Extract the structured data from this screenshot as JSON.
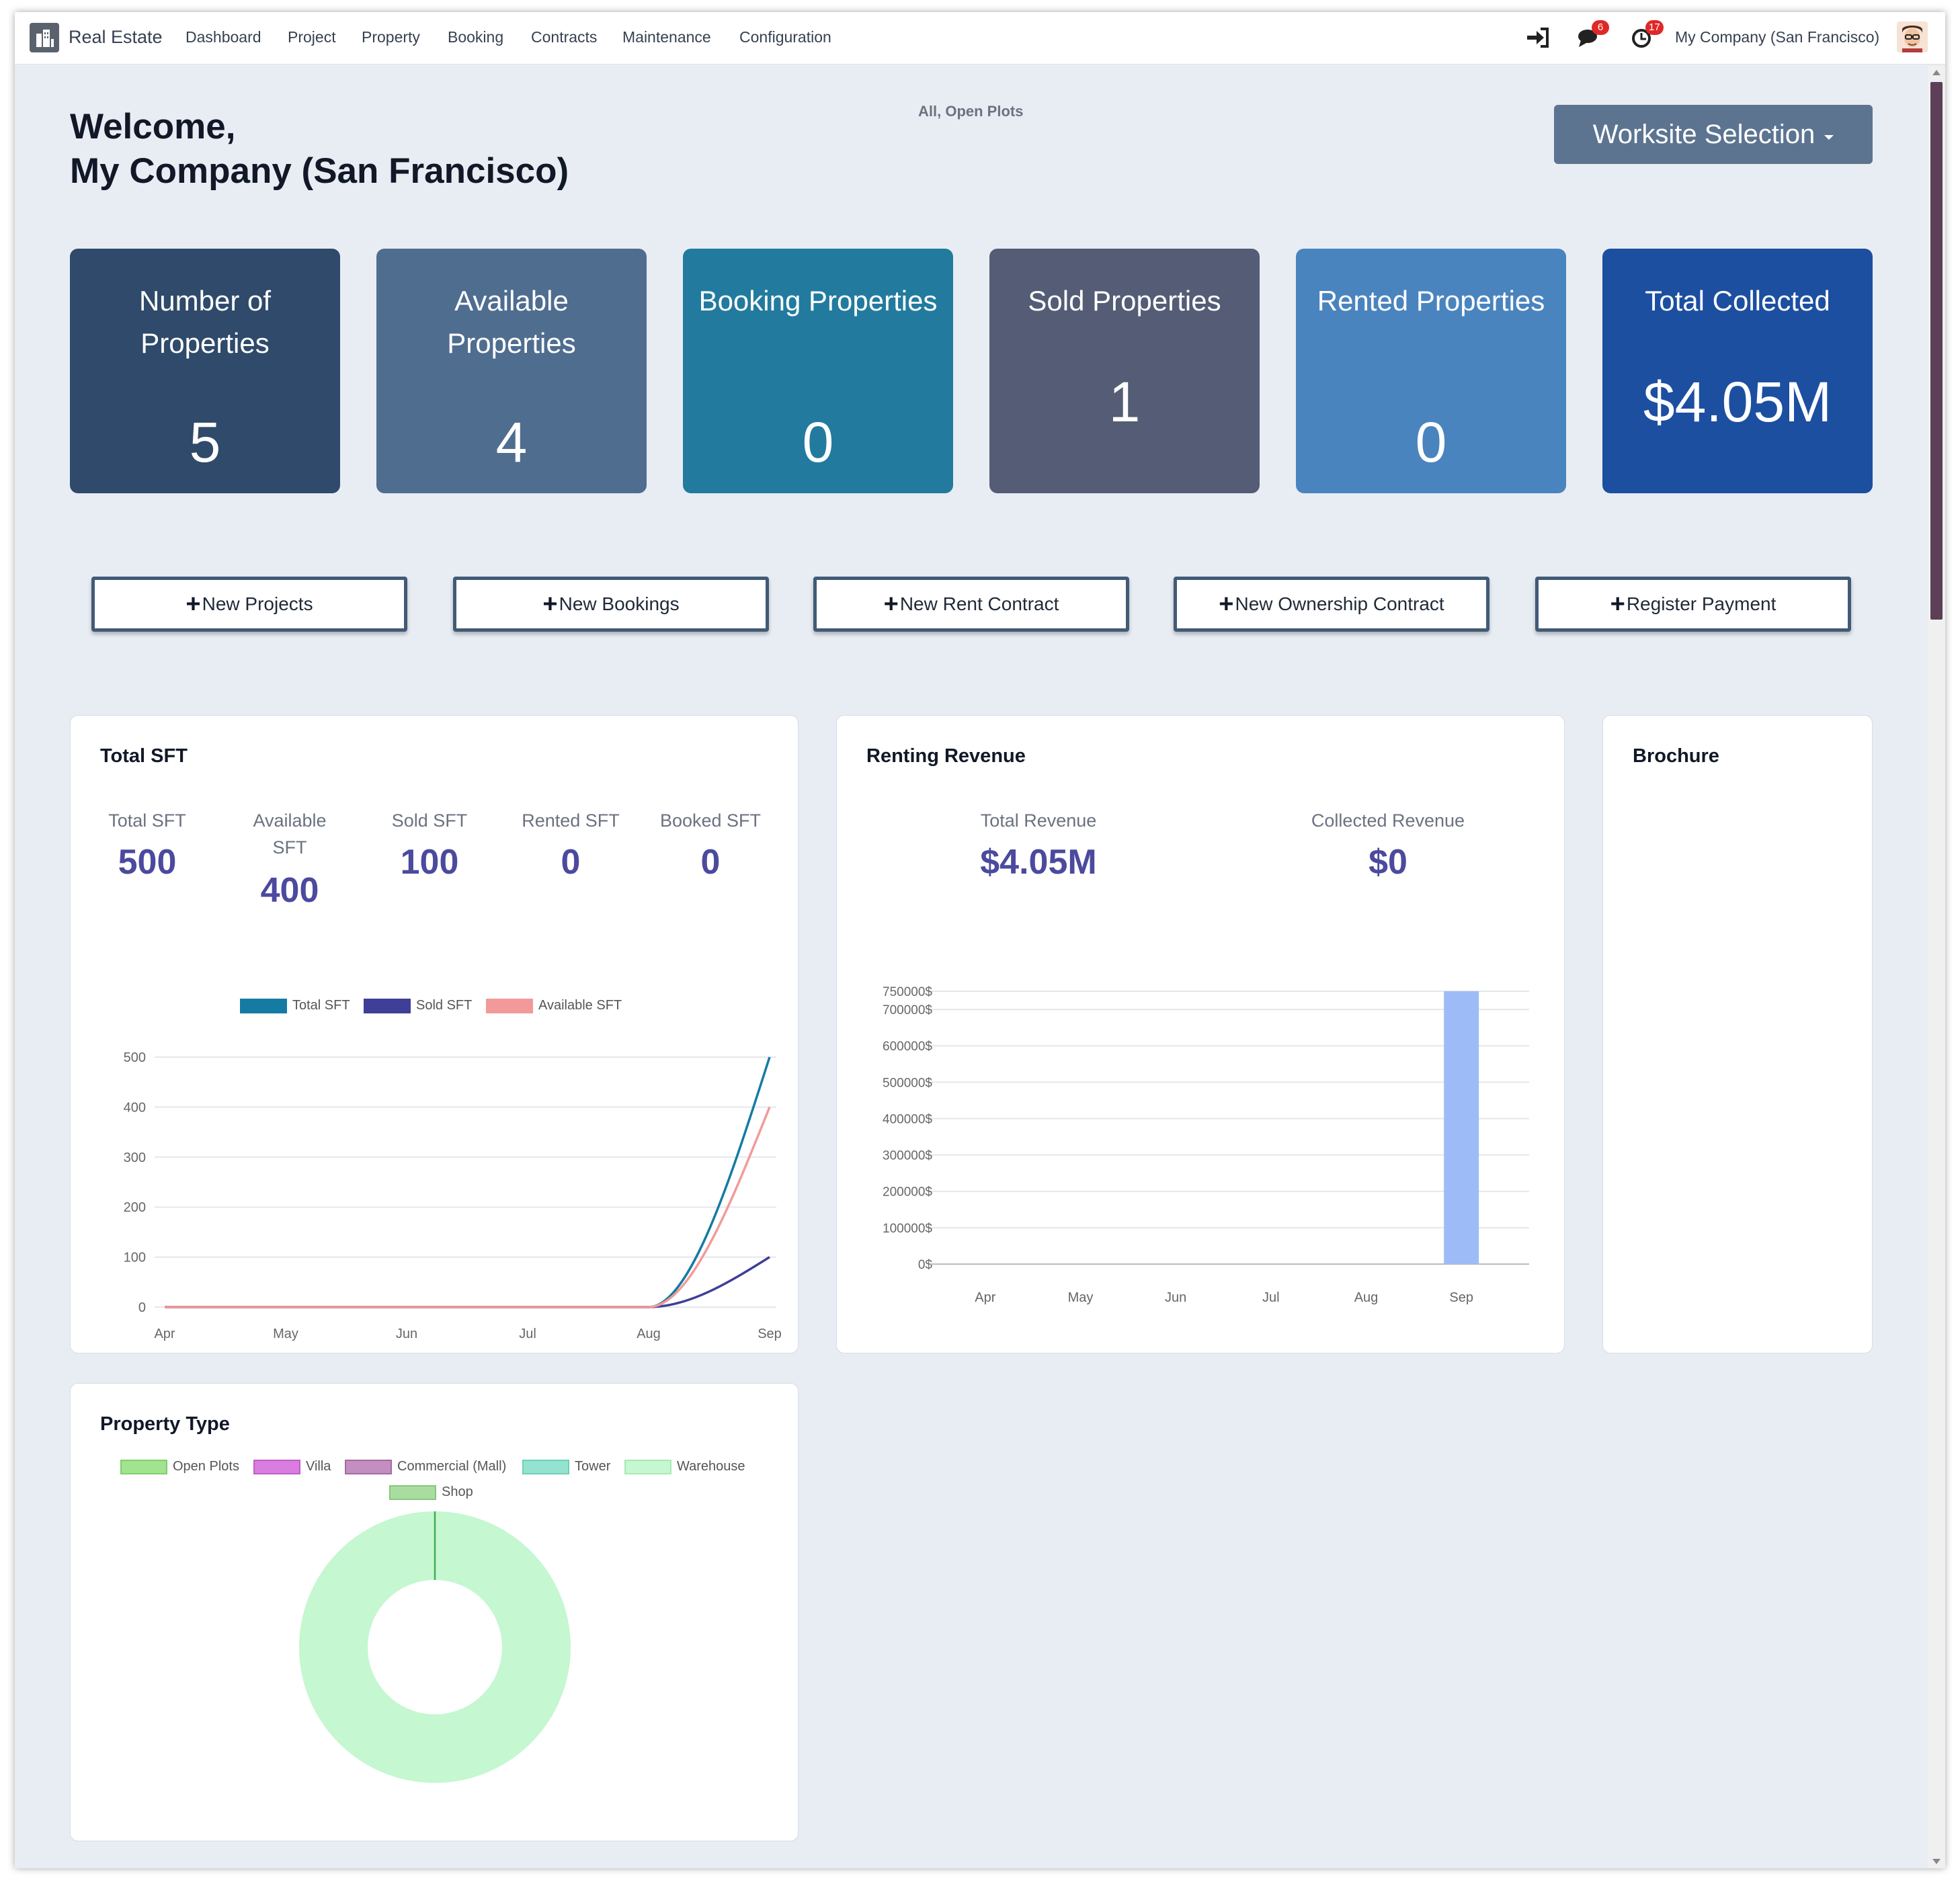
{
  "navbar": {
    "app_name": "Real Estate",
    "menu": [
      "Dashboard",
      "Project",
      "Property",
      "Booking",
      "Contracts",
      "Maintenance",
      "Configuration"
    ],
    "messages_badge": "6",
    "activities_badge": "17",
    "company": "My Company (San Francisco)",
    "icons": [
      "sign-in-icon",
      "chat-icon",
      "clock-icon"
    ]
  },
  "header": {
    "welcome_line1": "Welcome,",
    "welcome_line2": "My Company (San Francisco)",
    "filter": "All, Open Plots",
    "worksite_button": "Worksite Selection"
  },
  "kpis": [
    {
      "title": "Number of Properties",
      "value": "5",
      "color": "#2f4a6a"
    },
    {
      "title": "Available Properties",
      "value": "4",
      "color": "#4f6d8f"
    },
    {
      "title": "Booking Properties",
      "value": "0",
      "color": "#227b9e"
    },
    {
      "title": "Sold Properties",
      "value": "1",
      "color": "#545d75"
    },
    {
      "title": "Rented Properties",
      "value": "0",
      "color": "#4a84be"
    },
    {
      "title": "Total Collected",
      "value": "$4.05M",
      "color": "#1c4fa0"
    }
  ],
  "actions": [
    "New Projects",
    "New Bookings",
    "New Rent Contract",
    "New Ownership Contract",
    "Register Payment"
  ],
  "total_sft": {
    "title": "Total SFT",
    "stats": [
      {
        "label": "Total SFT",
        "value": "500"
      },
      {
        "label": "Available SFT",
        "value": "400"
      },
      {
        "label": "Sold SFT",
        "value": "100"
      },
      {
        "label": "Rented SFT",
        "value": "0"
      },
      {
        "label": "Booked SFT",
        "value": "0"
      }
    ]
  },
  "renting_revenue": {
    "title": "Renting Revenue",
    "stats": [
      {
        "label": "Total Revenue",
        "value": "$4.05M"
      },
      {
        "label": "Collected Revenue",
        "value": "$0"
      }
    ]
  },
  "brochure": {
    "title": "Brochure"
  },
  "property_type": {
    "title": "Property Type"
  },
  "chart_data": [
    {
      "type": "line",
      "categories": [
        "Apr",
        "May",
        "Jun",
        "Jul",
        "Aug",
        "Sep"
      ],
      "ylim": [
        0,
        500
      ],
      "yticks": [
        "0",
        "100",
        "200",
        "300",
        "400",
        "500"
      ],
      "series": [
        {
          "name": "Total SFT",
          "values": [
            0,
            0,
            0,
            0,
            0,
            500
          ],
          "color": "#157ba3"
        },
        {
          "name": "Sold SFT",
          "values": [
            0,
            0,
            0,
            0,
            0,
            100
          ],
          "color": "#3f3f97"
        },
        {
          "name": "Available SFT",
          "values": [
            0,
            0,
            0,
            0,
            0,
            400
          ],
          "color": "#f29a9a"
        }
      ]
    },
    {
      "type": "bar",
      "categories": [
        "Apr",
        "May",
        "Jun",
        "Jul",
        "Aug",
        "Sep"
      ],
      "values": [
        0,
        0,
        0,
        0,
        0,
        750000
      ],
      "ylim": [
        0,
        750000
      ],
      "yticks": [
        "0$",
        "100000$",
        "200000$",
        "300000$",
        "400000$",
        "500000$",
        "600000$",
        "700000$",
        "750000$"
      ],
      "color": "#9dbcf7"
    },
    {
      "type": "pie",
      "categories": [
        "Open Plots",
        "Villa",
        "Commercial (Mall)",
        "Tower",
        "Warehouse",
        "Shop"
      ],
      "values": [
        0,
        0,
        0,
        0,
        1,
        0
      ],
      "colors": [
        "#a2e38f",
        "#d97ee0",
        "#c38fc0",
        "#94e3d0",
        "#c5f7d0",
        "#a9dda0"
      ]
    }
  ]
}
